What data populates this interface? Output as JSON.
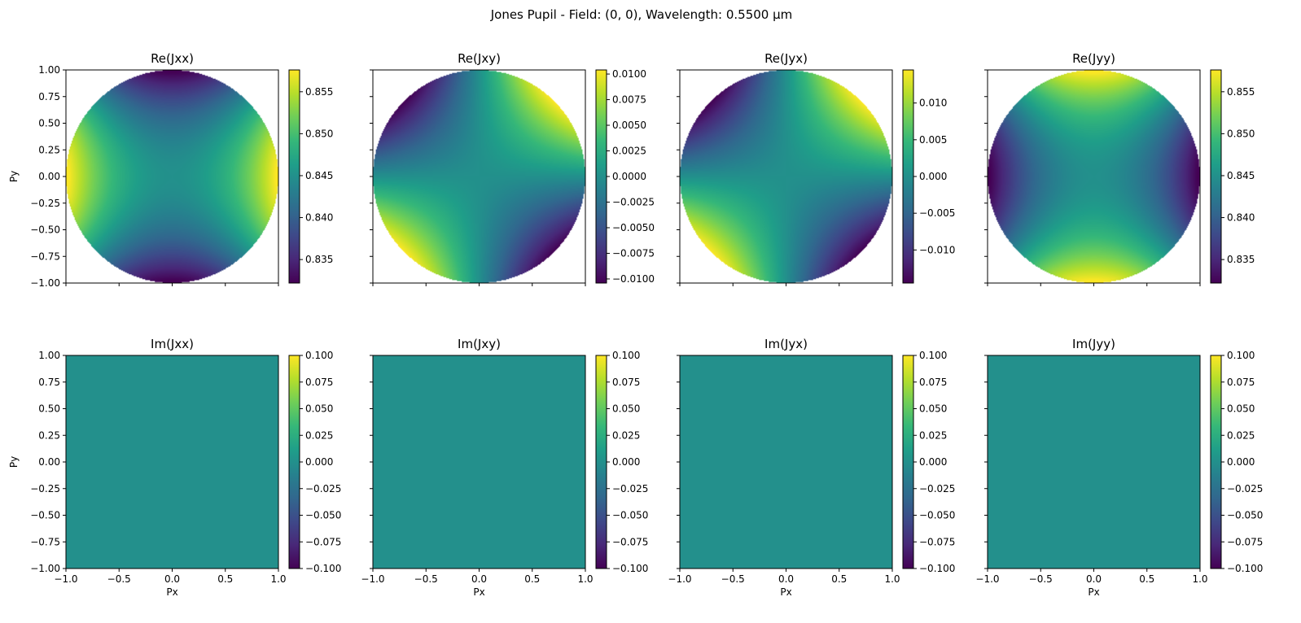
{
  "figure": {
    "title": "Jones Pupil - Field: (0, 0), Wavelength: 0.5500 µm"
  },
  "colormap": "viridis",
  "colormap_stops": [
    "#440154",
    "#482878",
    "#3e4989",
    "#31688e",
    "#26828e",
    "#1f9e89",
    "#35b779",
    "#6ece58",
    "#b5de2b",
    "#fde725"
  ],
  "chart_data": [
    {
      "type": "heatmap",
      "title": "Re(Jxx)",
      "xlabel": "",
      "ylabel": "Py",
      "xlim": [
        -1,
        1
      ],
      "ylim": [
        -1,
        1
      ],
      "aperture": "circle",
      "pattern": "astig",
      "color_range": [
        0.8322,
        0.8576
      ],
      "xticks": [
        "",
        "",
        "",
        "",
        ""
      ],
      "yticks": [
        "1.00",
        "0.75",
        "0.50",
        "0.25",
        "0.00",
        "−0.25",
        "−0.50",
        "−0.75",
        "−1.00"
      ],
      "colorbar_ticks": [
        {
          "value": 0.835,
          "label": "0.835"
        },
        {
          "value": 0.84,
          "label": "0.840"
        },
        {
          "value": 0.845,
          "label": "0.845"
        },
        {
          "value": 0.85,
          "label": "0.850"
        },
        {
          "value": 0.855,
          "label": "0.855"
        }
      ]
    },
    {
      "type": "heatmap",
      "title": "Re(Jxy)",
      "xlabel": "",
      "ylabel": "",
      "xlim": [
        -1,
        1
      ],
      "ylim": [
        -1,
        1
      ],
      "aperture": "circle",
      "pattern": "diag",
      "color_range": [
        -0.0104,
        0.0104
      ],
      "xticks": [
        "",
        "",
        "",
        "",
        ""
      ],
      "yticks": [
        "",
        "",
        "",
        "",
        "",
        "",
        "",
        "",
        ""
      ],
      "colorbar_ticks": [
        {
          "value": -0.01,
          "label": "−0.0100"
        },
        {
          "value": -0.0075,
          "label": "−0.0075"
        },
        {
          "value": -0.005,
          "label": "−0.0050"
        },
        {
          "value": -0.0025,
          "label": "−0.0025"
        },
        {
          "value": 0.0,
          "label": "0.0000"
        },
        {
          "value": 0.0025,
          "label": "0.0025"
        },
        {
          "value": 0.005,
          "label": "0.0050"
        },
        {
          "value": 0.0075,
          "label": "0.0075"
        },
        {
          "value": 0.01,
          "label": "0.0100"
        }
      ]
    },
    {
      "type": "heatmap",
      "title": "Re(Jyx)",
      "xlabel": "",
      "ylabel": "",
      "xlim": [
        -1,
        1
      ],
      "ylim": [
        -1,
        1
      ],
      "aperture": "circle",
      "pattern": "diag",
      "color_range": [
        -0.0145,
        0.0145
      ],
      "xticks": [
        "",
        "",
        "",
        "",
        ""
      ],
      "yticks": [
        "",
        "",
        "",
        "",
        "",
        "",
        "",
        "",
        ""
      ],
      "colorbar_ticks": [
        {
          "value": -0.01,
          "label": "−0.010"
        },
        {
          "value": -0.005,
          "label": "−0.005"
        },
        {
          "value": 0.0,
          "label": "0.000"
        },
        {
          "value": 0.005,
          "label": "0.005"
        },
        {
          "value": 0.01,
          "label": "0.010"
        }
      ]
    },
    {
      "type": "heatmap",
      "title": "Re(Jyy)",
      "xlabel": "",
      "ylabel": "",
      "xlim": [
        -1,
        1
      ],
      "ylim": [
        -1,
        1
      ],
      "aperture": "circle",
      "pattern": "astig_rev",
      "color_range": [
        0.8322,
        0.8576
      ],
      "xticks": [
        "",
        "",
        "",
        "",
        ""
      ],
      "yticks": [
        "",
        "",
        "",
        "",
        "",
        "",
        "",
        "",
        ""
      ],
      "colorbar_ticks": [
        {
          "value": 0.835,
          "label": "0.835"
        },
        {
          "value": 0.84,
          "label": "0.840"
        },
        {
          "value": 0.845,
          "label": "0.845"
        },
        {
          "value": 0.85,
          "label": "0.850"
        },
        {
          "value": 0.855,
          "label": "0.855"
        }
      ]
    },
    {
      "type": "heatmap",
      "title": "Im(Jxx)",
      "xlabel": "Px",
      "ylabel": "Py",
      "xlim": [
        -1,
        1
      ],
      "ylim": [
        -1,
        1
      ],
      "aperture": "square",
      "pattern": "constant",
      "value": 0.0,
      "color_range": [
        -0.1,
        0.1
      ],
      "xticks": [
        "−1.0",
        "−0.5",
        "0.0",
        "0.5",
        "1.0"
      ],
      "yticks": [
        "1.00",
        "0.75",
        "0.50",
        "0.25",
        "0.00",
        "−0.25",
        "−0.50",
        "−0.75",
        "−1.00"
      ],
      "colorbar_ticks": [
        {
          "value": -0.1,
          "label": "−0.100"
        },
        {
          "value": -0.075,
          "label": "−0.075"
        },
        {
          "value": -0.05,
          "label": "−0.050"
        },
        {
          "value": -0.025,
          "label": "−0.025"
        },
        {
          "value": 0.0,
          "label": "0.000"
        },
        {
          "value": 0.025,
          "label": "0.025"
        },
        {
          "value": 0.05,
          "label": "0.050"
        },
        {
          "value": 0.075,
          "label": "0.075"
        },
        {
          "value": 0.1,
          "label": "0.100"
        }
      ]
    },
    {
      "type": "heatmap",
      "title": "Im(Jxy)",
      "xlabel": "Px",
      "ylabel": "",
      "xlim": [
        -1,
        1
      ],
      "ylim": [
        -1,
        1
      ],
      "aperture": "square",
      "pattern": "constant",
      "value": 0.0,
      "color_range": [
        -0.1,
        0.1
      ],
      "xticks": [
        "−1.0",
        "−0.5",
        "0.0",
        "0.5",
        "1.0"
      ],
      "yticks": [
        "",
        "",
        "",
        "",
        "",
        "",
        "",
        "",
        ""
      ],
      "colorbar_ticks": [
        {
          "value": -0.1,
          "label": "−0.100"
        },
        {
          "value": -0.075,
          "label": "−0.075"
        },
        {
          "value": -0.05,
          "label": "−0.050"
        },
        {
          "value": -0.025,
          "label": "−0.025"
        },
        {
          "value": 0.0,
          "label": "0.000"
        },
        {
          "value": 0.025,
          "label": "0.025"
        },
        {
          "value": 0.05,
          "label": "0.050"
        },
        {
          "value": 0.075,
          "label": "0.075"
        },
        {
          "value": 0.1,
          "label": "0.100"
        }
      ]
    },
    {
      "type": "heatmap",
      "title": "Im(Jyx)",
      "xlabel": "Px",
      "ylabel": "",
      "xlim": [
        -1,
        1
      ],
      "ylim": [
        -1,
        1
      ],
      "aperture": "square",
      "pattern": "constant",
      "value": 0.0,
      "color_range": [
        -0.1,
        0.1
      ],
      "xticks": [
        "−1.0",
        "−0.5",
        "0.0",
        "0.5",
        "1.0"
      ],
      "yticks": [
        "",
        "",
        "",
        "",
        "",
        "",
        "",
        "",
        ""
      ],
      "colorbar_ticks": [
        {
          "value": -0.1,
          "label": "−0.100"
        },
        {
          "value": -0.075,
          "label": "−0.075"
        },
        {
          "value": -0.05,
          "label": "−0.050"
        },
        {
          "value": -0.025,
          "label": "−0.025"
        },
        {
          "value": 0.0,
          "label": "0.000"
        },
        {
          "value": 0.025,
          "label": "0.025"
        },
        {
          "value": 0.05,
          "label": "0.050"
        },
        {
          "value": 0.075,
          "label": "0.075"
        },
        {
          "value": 0.1,
          "label": "0.100"
        }
      ]
    },
    {
      "type": "heatmap",
      "title": "Im(Jyy)",
      "xlabel": "Px",
      "ylabel": "",
      "xlim": [
        -1,
        1
      ],
      "ylim": [
        -1,
        1
      ],
      "aperture": "square",
      "pattern": "constant",
      "value": 0.0,
      "color_range": [
        -0.1,
        0.1
      ],
      "xticks": [
        "−1.0",
        "−0.5",
        "0.0",
        "0.5",
        "1.0"
      ],
      "yticks": [
        "",
        "",
        "",
        "",
        "",
        "",
        "",
        "",
        ""
      ],
      "colorbar_ticks": [
        {
          "value": -0.1,
          "label": "−0.100"
        },
        {
          "value": -0.075,
          "label": "−0.075"
        },
        {
          "value": -0.05,
          "label": "−0.050"
        },
        {
          "value": -0.025,
          "label": "−0.025"
        },
        {
          "value": 0.0,
          "label": "0.000"
        },
        {
          "value": 0.025,
          "label": "0.025"
        },
        {
          "value": 0.05,
          "label": "0.050"
        },
        {
          "value": 0.075,
          "label": "0.075"
        },
        {
          "value": 0.1,
          "label": "0.100"
        }
      ]
    }
  ]
}
